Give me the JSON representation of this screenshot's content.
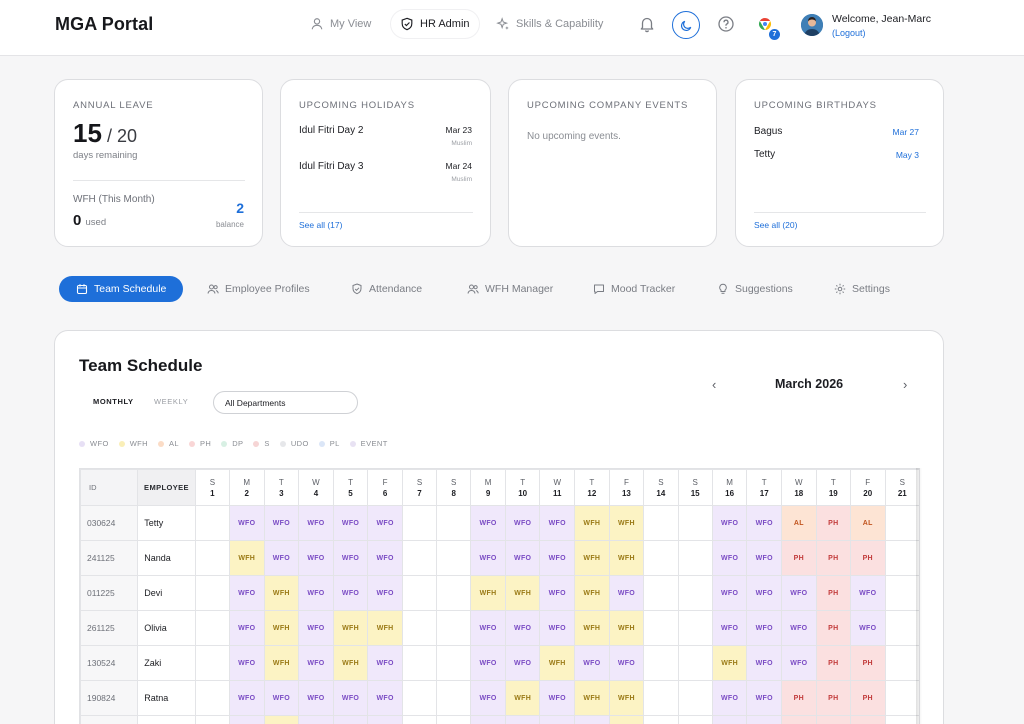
{
  "app": {
    "brand": "MGA Portal"
  },
  "nav": {
    "my_view": "My View",
    "hr_admin": "HR Admin",
    "skills": "Skills & Capability"
  },
  "user": {
    "welcome": "Welcome, Jean-Marc",
    "logout": "(Logout)",
    "notification_badge": "7"
  },
  "cards": {
    "annual_leave": {
      "title": "ANNUAL LEAVE",
      "remaining": "15",
      "total": "/ 20",
      "remaining_label": "days remaining",
      "wfh_title": "WFH (This Month)",
      "wfh_used": "0",
      "wfh_used_label": "used",
      "wfh_balance": "2",
      "wfh_balance_label": "balance"
    },
    "holidays": {
      "title": "UPCOMING HOLIDAYS",
      "items": [
        {
          "name": "Idul Fitri Day 2",
          "date": "Mar 23",
          "tag": "Muslim"
        },
        {
          "name": "Idul Fitri Day 3",
          "date": "Mar 24",
          "tag": "Muslim"
        }
      ],
      "see_all": "See all (17)"
    },
    "events": {
      "title": "UPCOMING COMPANY EVENTS",
      "empty": "No upcoming events."
    },
    "birthdays": {
      "title": "UPCOMING BIRTHDAYS",
      "items": [
        {
          "name": "Bagus",
          "date": "Mar 27"
        },
        {
          "name": "Tetty",
          "date": "May 3"
        }
      ],
      "see_all": "See all (20)"
    }
  },
  "tabs": [
    "Team Schedule",
    "Employee Profiles",
    "Attendance",
    "WFH Manager",
    "Mood Tracker",
    "Suggestions",
    "Settings"
  ],
  "schedule": {
    "title": "Team Schedule",
    "modes": [
      "MONTHLY",
      "WEEKLY"
    ],
    "department": "All Departments",
    "month": "March 2026",
    "legend": [
      {
        "label": "WFO",
        "color": "#e7e0f5"
      },
      {
        "label": "WFH",
        "color": "#faefb8"
      },
      {
        "label": "AL",
        "color": "#fbdcc6"
      },
      {
        "label": "PH",
        "color": "#f9d6d6"
      },
      {
        "label": "DP",
        "color": "#d8f0e4"
      },
      {
        "label": "S",
        "color": "#f6d5d5"
      },
      {
        "label": "UDO",
        "color": "#e6e7ea"
      },
      {
        "label": "PL",
        "color": "#dbe6f7"
      },
      {
        "label": "EVENT",
        "color": "#e8e2f3"
      }
    ],
    "col_id": "ID",
    "col_employee": "EMPLOYEE",
    "days": [
      {
        "d": "S",
        "n": "1"
      },
      {
        "d": "M",
        "n": "2"
      },
      {
        "d": "T",
        "n": "3"
      },
      {
        "d": "W",
        "n": "4"
      },
      {
        "d": "T",
        "n": "5"
      },
      {
        "d": "F",
        "n": "6"
      },
      {
        "d": "S",
        "n": "7"
      },
      {
        "d": "S",
        "n": "8"
      },
      {
        "d": "M",
        "n": "9"
      },
      {
        "d": "T",
        "n": "10"
      },
      {
        "d": "W",
        "n": "11"
      },
      {
        "d": "T",
        "n": "12"
      },
      {
        "d": "F",
        "n": "13"
      },
      {
        "d": "S",
        "n": "14"
      },
      {
        "d": "S",
        "n": "15"
      },
      {
        "d": "M",
        "n": "16"
      },
      {
        "d": "T",
        "n": "17"
      },
      {
        "d": "W",
        "n": "18"
      },
      {
        "d": "T",
        "n": "19"
      },
      {
        "d": "F",
        "n": "20"
      },
      {
        "d": "S",
        "n": "21"
      }
    ],
    "rows": [
      {
        "id": "030624",
        "name": "Tetty",
        "cells": [
          "",
          "WFO",
          "WFO",
          "WFO",
          "WFO",
          "WFO",
          "",
          "",
          "WFO",
          "WFO",
          "WFO",
          "WFH",
          "WFH",
          "",
          "",
          "WFO",
          "WFO",
          "AL",
          "PH",
          "AL",
          ""
        ]
      },
      {
        "id": "241125",
        "name": "Nanda",
        "cells": [
          "",
          "WFH",
          "WFO",
          "WFO",
          "WFO",
          "WFO",
          "",
          "",
          "WFO",
          "WFO",
          "WFO",
          "WFH",
          "WFH",
          "",
          "",
          "WFO",
          "WFO",
          "PH",
          "PH",
          "PH",
          ""
        ]
      },
      {
        "id": "011225",
        "name": "Devi",
        "cells": [
          "",
          "WFO",
          "WFH",
          "WFO",
          "WFO",
          "WFO",
          "",
          "",
          "WFH",
          "WFH",
          "WFO",
          "WFH",
          "WFO",
          "",
          "",
          "WFO",
          "WFO",
          "WFO",
          "PH",
          "WFO",
          ""
        ]
      },
      {
        "id": "261125",
        "name": "Olivia",
        "cells": [
          "",
          "WFO",
          "WFH",
          "WFO",
          "WFH",
          "WFH",
          "",
          "",
          "WFO",
          "WFO",
          "WFO",
          "WFH",
          "WFH",
          "",
          "",
          "WFO",
          "WFO",
          "WFO",
          "PH",
          "WFO",
          ""
        ]
      },
      {
        "id": "130524",
        "name": "Zaki",
        "cells": [
          "",
          "WFO",
          "WFH",
          "WFO",
          "WFH",
          "WFO",
          "",
          "",
          "WFO",
          "WFO",
          "WFH",
          "WFO",
          "WFO",
          "",
          "",
          "WFH",
          "WFO",
          "WFO",
          "PH",
          "PH",
          ""
        ]
      },
      {
        "id": "190824",
        "name": "Ratna",
        "cells": [
          "",
          "WFO",
          "WFO",
          "WFO",
          "WFO",
          "WFO",
          "",
          "",
          "WFO",
          "WFH",
          "WFO",
          "WFH",
          "WFH",
          "",
          "",
          "WFO",
          "WFO",
          "PH",
          "PH",
          "PH",
          ""
        ]
      },
      {
        "id": "",
        "name": "",
        "cells": [
          "",
          "WFO",
          "WFH",
          "WFO",
          "WFO",
          "WFO",
          "",
          "",
          "WFO",
          "WFO",
          "WFO",
          "WFO",
          "WFH",
          "",
          "",
          "WFO",
          "WFO",
          "PH",
          "PH",
          "PH",
          ""
        ]
      }
    ]
  }
}
